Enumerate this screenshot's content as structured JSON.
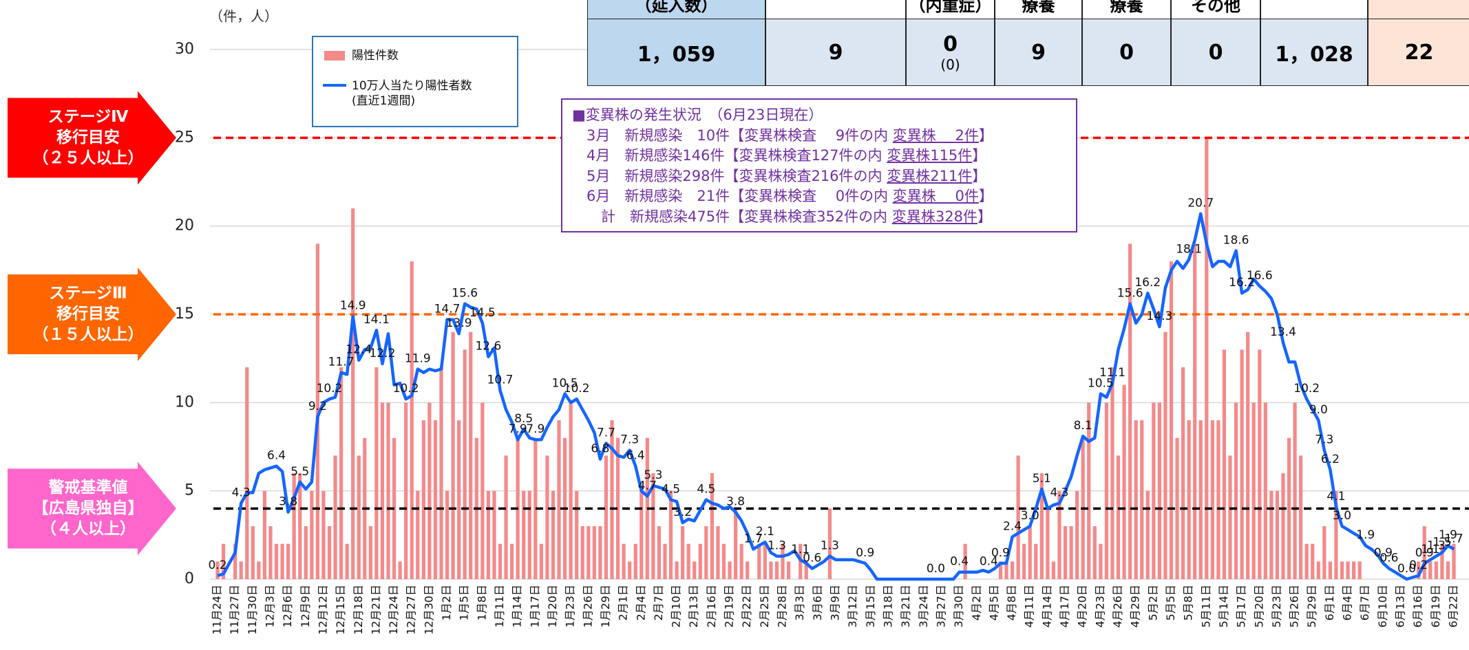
{
  "chart_data": {
    "type": "bar",
    "y_axis_label": "（件，人）",
    "ylim": [
      0,
      30
    ],
    "yticks": [
      0,
      5,
      10,
      15,
      20,
      25,
      30
    ],
    "grid": true,
    "categories": [
      "11月24日",
      null,
      null,
      "11月27日",
      null,
      null,
      "11月30日",
      null,
      null,
      "12月3日",
      null,
      null,
      "12月6日",
      null,
      null,
      "12月9日",
      null,
      null,
      "12月12日",
      null,
      null,
      "12月15日",
      null,
      null,
      "12月18日",
      null,
      null,
      "12月21日",
      null,
      null,
      "12月24日",
      null,
      null,
      "12月27日",
      null,
      null,
      "12月30日",
      null,
      null,
      "1月2日",
      null,
      null,
      "1月5日",
      null,
      null,
      "1月8日",
      null,
      null,
      "1月11日",
      null,
      null,
      "1月14日",
      null,
      null,
      "1月17日",
      null,
      null,
      "1月20日",
      null,
      null,
      "1月23日",
      null,
      null,
      "1月26日",
      null,
      null,
      "1月29日",
      null,
      null,
      "2月1日",
      null,
      null,
      "2月4日",
      null,
      null,
      "2月7日",
      null,
      null,
      "2月10日",
      null,
      null,
      "2月13日",
      null,
      null,
      "2月16日",
      null,
      null,
      "2月19日",
      null,
      null,
      "2月22日",
      null,
      null,
      "2月25日",
      null,
      null,
      "2月28日",
      null,
      null,
      "3月3日",
      null,
      null,
      "3月6日",
      null,
      null,
      "3月9日",
      null,
      null,
      "3月12日",
      null,
      null,
      "3月15日",
      null,
      null,
      "3月18日",
      null,
      null,
      "3月21日",
      null,
      null,
      "3月24日",
      null,
      null,
      "3月27日",
      null,
      null,
      "3月30日",
      null,
      null,
      "4月2日",
      null,
      null,
      "4月5日",
      null,
      null,
      "4月8日",
      null,
      null,
      "4月11日",
      null,
      null,
      "4月14日",
      null,
      null,
      "4月17日",
      null,
      null,
      "4月20日",
      null,
      null,
      "4月23日",
      null,
      null,
      "4月26日",
      null,
      null,
      "4月29日",
      null,
      null,
      "5月2日",
      null,
      null,
      "5月5日",
      null,
      null,
      "5月8日",
      null,
      null,
      "5月11日",
      null,
      null,
      "5月14日",
      null,
      null,
      "5月17日",
      null,
      null,
      "5月20日",
      null,
      null,
      "5月23日",
      null,
      null,
      "5月26日",
      null,
      null,
      "5月29日",
      null,
      null,
      "6月1日",
      null,
      null,
      "6月4日",
      null,
      null,
      "6月7日",
      null,
      null,
      "6月10日",
      null,
      null,
      "6月13日",
      null,
      null,
      "6月16日",
      null,
      null,
      "6月19日",
      null,
      null,
      "6月22日"
    ],
    "series": [
      {
        "name": "陽性件数",
        "type": "bar",
        "color": "#f4898a",
        "values": [
          1,
          2,
          0,
          2,
          1,
          12,
          3,
          1,
          5,
          3,
          2,
          2,
          2,
          6,
          6,
          3,
          5,
          19,
          5,
          3,
          7,
          12,
          2,
          21,
          7,
          8,
          3,
          12,
          10,
          10,
          8,
          1,
          10,
          18,
          5,
          9,
          10,
          9,
          12,
          5,
          14,
          9,
          13,
          14,
          8,
          10,
          5,
          5,
          2,
          7,
          2,
          8,
          5,
          5,
          8,
          2,
          7,
          5,
          9,
          8,
          10,
          5,
          3,
          3,
          3,
          3,
          7,
          9,
          8,
          2,
          1,
          2,
          5,
          8,
          6,
          3,
          2,
          5,
          1,
          3,
          2,
          1,
          2,
          3,
          6,
          3,
          2,
          1,
          4,
          2,
          1,
          0,
          2,
          2,
          1,
          1,
          2,
          1,
          0,
          2,
          1,
          0,
          0,
          0,
          4,
          0,
          0,
          0,
          0,
          0,
          0,
          0,
          0,
          0,
          0,
          0,
          0,
          0,
          0,
          0,
          0,
          0,
          0,
          0,
          0,
          0,
          0,
          2,
          0,
          0,
          0,
          0,
          0,
          1,
          1,
          1,
          7,
          2,
          3,
          2,
          6,
          4,
          1,
          5,
          3,
          3,
          5,
          8,
          10,
          3,
          2,
          10,
          12,
          7,
          11,
          19,
          9,
          9,
          5,
          10,
          10,
          14,
          18,
          8,
          12,
          9,
          19,
          9,
          25,
          9,
          9,
          13,
          7,
          10,
          13,
          14,
          10,
          13,
          10,
          5,
          5,
          6,
          8,
          10,
          7,
          2,
          2,
          1,
          3,
          1,
          5,
          1,
          1,
          1,
          1,
          0,
          0,
          0,
          0,
          0,
          0,
          0,
          0,
          0,
          1,
          3,
          1,
          1,
          2,
          1,
          2
        ]
      },
      {
        "name": "10万人当たり陽性者数\n(直近1週間)",
        "type": "line",
        "color": "#1565ff",
        "values": [
          0.2,
          0.3,
          0.9,
          1.5,
          4.3,
          4.9,
          4.9,
          6.0,
          6.2,
          6.3,
          6.4,
          6.1,
          3.8,
          4.6,
          5.5,
          5.1,
          5.5,
          9.2,
          10.0,
          10.2,
          10.3,
          11.7,
          11.6,
          14.9,
          12.4,
          13.0,
          13.1,
          14.1,
          12.2,
          13.9,
          11.0,
          11.1,
          10.2,
          10.4,
          11.9,
          11.7,
          11.9,
          11.8,
          11.9,
          14.7,
          14.7,
          13.9,
          15.6,
          15.4,
          15.3,
          14.5,
          12.6,
          13.1,
          10.7,
          9.6,
          8.9,
          7.9,
          8.5,
          8.0,
          7.9,
          7.9,
          8.6,
          9.2,
          9.6,
          10.5,
          10.0,
          10.2,
          9.6,
          9.0,
          8.3,
          6.8,
          7.7,
          7.4,
          7.0,
          6.9,
          7.3,
          6.4,
          5.0,
          4.7,
          5.3,
          5.2,
          5.1,
          4.5,
          4.4,
          3.2,
          3.4,
          3.3,
          3.9,
          4.5,
          4.3,
          4.2,
          4.0,
          4.1,
          3.8,
          3.3,
          2.6,
          1.7,
          1.9,
          2.1,
          1.5,
          1.3,
          1.3,
          1.4,
          1.6,
          1.1,
          0.9,
          0.6,
          0.8,
          1.0,
          1.3,
          1.1,
          1.1,
          1.1,
          1.1,
          1.0,
          0.9,
          0.5,
          0,
          0,
          0,
          0,
          0,
          0,
          0,
          0,
          0,
          0,
          0,
          0,
          0,
          0,
          0.4,
          0.4,
          0.4,
          0.4,
          0.5,
          0.4,
          0.6,
          0.9,
          0.9,
          2.4,
          2.6,
          2.8,
          3.0,
          4.0,
          5.1,
          4.0,
          4.2,
          4.3,
          5.0,
          5.8,
          7.0,
          8.1,
          7.8,
          8.0,
          10.5,
          10.3,
          11.1,
          13.0,
          14.2,
          15.6,
          14.5,
          15.0,
          16.2,
          15.3,
          14.3,
          16.5,
          17.5,
          18.0,
          17.6,
          18.1,
          19.2,
          20.7,
          19.0,
          17.7,
          18.0,
          18.0,
          17.7,
          18.6,
          16.2,
          16.4,
          17.0,
          16.6,
          16.3,
          15.9,
          15.0,
          13.4,
          12.3,
          12.3,
          11.0,
          10.2,
          9.6,
          9.0,
          7.3,
          6.2,
          4.1,
          3.0,
          2.8,
          2.6,
          2.4,
          1.9,
          1.7,
          1.4,
          0.9,
          0.6,
          0.4,
          0.2,
          0,
          0.1,
          0.2,
          0.9,
          1.1,
          1.3,
          1.5,
          1.9,
          1.7
        ],
        "value_labels": [
          "0.2",
          null,
          null,
          null,
          "4.3",
          null,
          null,
          null,
          null,
          null,
          "6.4",
          null,
          "3.8",
          null,
          "5.5",
          null,
          null,
          "9.2",
          null,
          "10.2",
          null,
          "11.7",
          null,
          "14.9",
          "12.4",
          null,
          null,
          "14.1",
          "12.2",
          null,
          null,
          null,
          "10.2",
          null,
          "11.9",
          null,
          null,
          null,
          null,
          "14.7",
          null,
          "13.9",
          "15.6",
          null,
          null,
          "14.5",
          "12.6",
          null,
          "10.7",
          null,
          null,
          "7.9",
          "8.5",
          null,
          "7.9",
          null,
          null,
          null,
          null,
          "10.5",
          null,
          "10.2",
          null,
          null,
          null,
          "6.8",
          "7.7",
          null,
          null,
          null,
          "7.3",
          "6.4",
          null,
          "4.7",
          "5.3",
          null,
          null,
          "4.5",
          null,
          "3.2",
          null,
          null,
          null,
          "4.5",
          null,
          null,
          null,
          null,
          "3.8",
          null,
          null,
          "1.7",
          null,
          "2.1",
          null,
          "1.3",
          null,
          null,
          null,
          "1.1",
          null,
          "0.6",
          null,
          null,
          "1.3",
          null,
          null,
          null,
          null,
          null,
          "0.9",
          null,
          null,
          null,
          null,
          null,
          null,
          null,
          null,
          null,
          null,
          null,
          "0.0",
          null,
          null,
          null,
          "0.4",
          null,
          null,
          null,
          null,
          "0.4",
          null,
          "0.9",
          null,
          "2.4",
          null,
          null,
          "3.0",
          null,
          "5.1",
          null,
          null,
          "4.3",
          null,
          null,
          null,
          "8.1",
          null,
          null,
          "10.5",
          null,
          "11.1",
          null,
          null,
          "15.6",
          null,
          null,
          "16.2",
          null,
          "14.3",
          null,
          null,
          null,
          null,
          "18.1",
          null,
          "20.7",
          null,
          null,
          null,
          null,
          null,
          "18.6",
          "16.2",
          null,
          null,
          "16.6",
          null,
          null,
          null,
          "13.4",
          null,
          null,
          null,
          "10.2",
          null,
          "9.0",
          "7.3",
          "6.2",
          "4.1",
          "3.0",
          null,
          null,
          null,
          "1.9",
          null,
          null,
          "0.9",
          "0.6",
          null,
          null,
          "0.0",
          null,
          "0.2",
          "0.9",
          "1.1",
          "1.3",
          "1.5",
          "1.9",
          "1.7"
        ]
      }
    ],
    "reference_lines": [
      {
        "value": 25,
        "color": "#ff0000",
        "label": [
          "ステージⅣ",
          "移行目安",
          "（２５人以上）"
        ],
        "label_color": "#ff0000"
      },
      {
        "value": 15,
        "color": "#ff6600",
        "label": [
          "ステージⅢ",
          "移行目安",
          "（１５人以上）"
        ],
        "label_color": "#ff6600"
      },
      {
        "value": 4,
        "color": "#000000",
        "label": [
          "警戒基準値",
          "【広島県独自】",
          "（４人以上）"
        ],
        "label_color": "#ff66cc"
      }
    ]
  },
  "table": {
    "header": [
      "（延入数）",
      null,
      "（内重症）",
      "療養",
      "療養",
      "その他",
      null,
      null
    ],
    "values": [
      "1，059",
      "9",
      {
        "main": "0",
        "sub": "(0)"
      },
      "9",
      "0",
      "0",
      "1，028",
      "22"
    ]
  },
  "notice": {
    "title": "■変異株の発生状況　（6月23日現在）",
    "rows": [
      [
        "　3月　新規感染　10件【変異株検査　 9件の内 ",
        "変異株　 2件",
        "】"
      ],
      [
        "　4月　新規感染146件【変異株検査127件の内 ",
        "変異株115件",
        "】"
      ],
      [
        "　5月　新規感染298件【変異株検査216件の内 ",
        "変異株211件",
        "】"
      ],
      [
        "　6月　新規感染　21件【変異株検査　 0件の内 ",
        "変異株　 0件",
        "】"
      ],
      [
        "　　計　新規感染475件【変異株検査352件の内 ",
        "変異株328件",
        "】"
      ]
    ]
  }
}
